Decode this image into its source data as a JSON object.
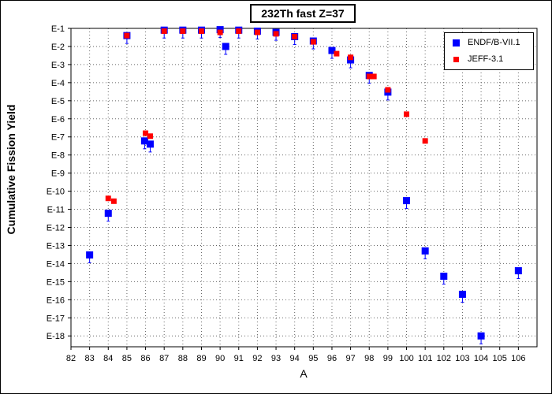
{
  "chart_data": {
    "type": "scatter",
    "title": "232Th fast Z=37",
    "xlabel": "A",
    "ylabel": "Cumulative Fission Yield",
    "x_ticks": [
      82,
      83,
      84,
      85,
      86,
      87,
      88,
      89,
      90,
      91,
      92,
      93,
      94,
      95,
      96,
      97,
      98,
      99,
      100,
      101,
      102,
      103,
      104,
      105,
      106
    ],
    "y_ticks": [
      "E-1",
      "E-2",
      "E-3",
      "E-4",
      "E-5",
      "E-6",
      "E-7",
      "E-8",
      "E-9",
      "E-10",
      "E-11",
      "E-12",
      "E-13",
      "E-14",
      "E-15",
      "E-16",
      "E-17",
      "E-18"
    ],
    "xlim": [
      82,
      107
    ],
    "ylim_log10": [
      -18.6,
      -1
    ],
    "y_scale": "log",
    "grid": true,
    "legend_position": "top-right",
    "series": [
      {
        "name": "ENDF/B-VII.1",
        "color": "#0000ff",
        "marker": "square",
        "points": [
          {
            "x": 83,
            "y": 3e-14
          },
          {
            "x": 84,
            "y": 6e-12
          },
          {
            "x": 85,
            "y": 0.04
          },
          {
            "x": 85.95,
            "y": 6e-08
          },
          {
            "x": 86.25,
            "y": 4e-08
          },
          {
            "x": 87,
            "y": 0.08
          },
          {
            "x": 88,
            "y": 0.08
          },
          {
            "x": 89,
            "y": 0.08
          },
          {
            "x": 90,
            "y": 0.085
          },
          {
            "x": 90.3,
            "y": 0.01
          },
          {
            "x": 91,
            "y": 0.08
          },
          {
            "x": 92,
            "y": 0.07
          },
          {
            "x": 93,
            "y": 0.06
          },
          {
            "x": 94,
            "y": 0.035
          },
          {
            "x": 95,
            "y": 0.02
          },
          {
            "x": 96,
            "y": 0.006
          },
          {
            "x": 97,
            "y": 0.0018
          },
          {
            "x": 98,
            "y": 0.00025
          },
          {
            "x": 99,
            "y": 3e-05
          },
          {
            "x": 100,
            "y": 3e-11
          },
          {
            "x": 101,
            "y": 5e-14
          },
          {
            "x": 102,
            "y": 2e-15
          },
          {
            "x": 103,
            "y": 2e-16
          },
          {
            "x": 104,
            "y": 1e-18
          },
          {
            "x": 106,
            "y": 4e-15
          }
        ]
      },
      {
        "name": "JEFF-3.1",
        "color": "#ff0000",
        "marker": "square",
        "points": [
          {
            "x": 84,
            "y": 4e-11
          },
          {
            "x": 84.3,
            "y": 2.8e-11
          },
          {
            "x": 85,
            "y": 0.04
          },
          {
            "x": 86,
            "y": 1.6e-07
          },
          {
            "x": 86.25,
            "y": 1.1e-07
          },
          {
            "x": 87,
            "y": 0.07
          },
          {
            "x": 88,
            "y": 0.07
          },
          {
            "x": 89,
            "y": 0.07
          },
          {
            "x": 90,
            "y": 0.06
          },
          {
            "x": 91,
            "y": 0.07
          },
          {
            "x": 92,
            "y": 0.06
          },
          {
            "x": 93,
            "y": 0.05
          },
          {
            "x": 94,
            "y": 0.035
          },
          {
            "x": 95,
            "y": 0.018
          },
          {
            "x": 96.25,
            "y": 0.004
          },
          {
            "x": 97,
            "y": 0.0025
          },
          {
            "x": 98,
            "y": 0.00022
          },
          {
            "x": 98.25,
            "y": 0.00022
          },
          {
            "x": 99,
            "y": 4e-05
          },
          {
            "x": 100,
            "y": 1.8e-06
          },
          {
            "x": 101,
            "y": 6e-08
          }
        ]
      }
    ]
  }
}
